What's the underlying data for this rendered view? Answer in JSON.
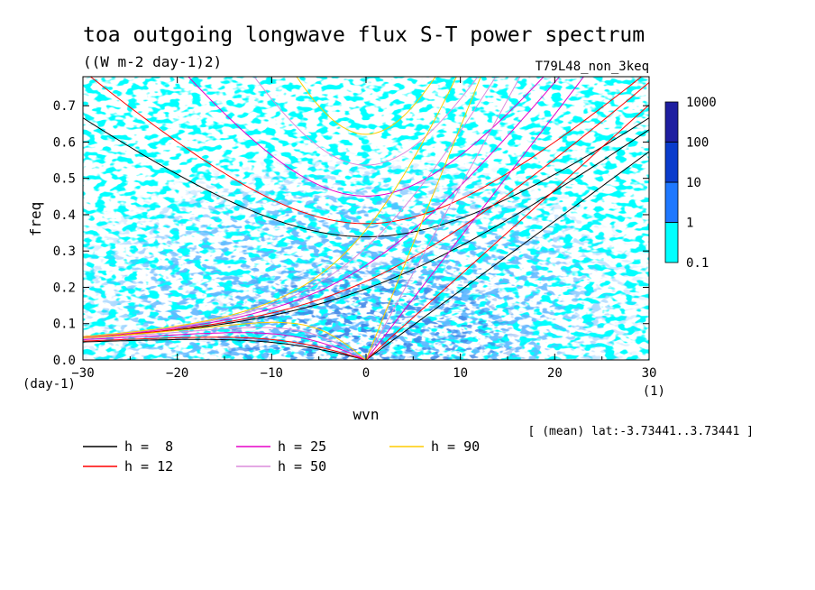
{
  "chart_data": {
    "type": "heatmap",
    "title": "toa outgoing longwave flux S-T power spectrum",
    "subtitle": "((W m-2 day-1)2)",
    "run_label": "T79L48_non_3keq",
    "xlabel": "wvn",
    "ylabel": "freq",
    "x_unit": "(1)",
    "y_unit": "(day-1)",
    "xlim": [
      -30,
      30
    ],
    "ylim": [
      0,
      0.78
    ],
    "x_ticks": [
      "-30",
      "-20",
      "-10",
      "0",
      "10",
      "20",
      "30"
    ],
    "y_ticks": [
      "0.0",
      "0.1",
      "0.2",
      "0.3",
      "0.4",
      "0.5",
      "0.6",
      "0.7"
    ],
    "colorbar": {
      "levels": [
        "0.1",
        "1",
        "10",
        "100",
        "1000"
      ],
      "colors": [
        "#00ffff",
        "#1e78ff",
        "#0a3ccc",
        "#1e1ea0",
        "#4b1eb4"
      ]
    },
    "mean_note": "[ (mean) lat:-3.73441..3.73441 ]",
    "dispersion_legend": [
      {
        "label": "h =  8",
        "color": "#000000"
      },
      {
        "label": "h = 12",
        "color": "#ff0000"
      },
      {
        "label": "h = 25",
        "color": "#e600c8"
      },
      {
        "label": "h = 50",
        "color": "#dc8cdc"
      },
      {
        "label": "h = 90",
        "color": "#ffcc00"
      }
    ]
  }
}
